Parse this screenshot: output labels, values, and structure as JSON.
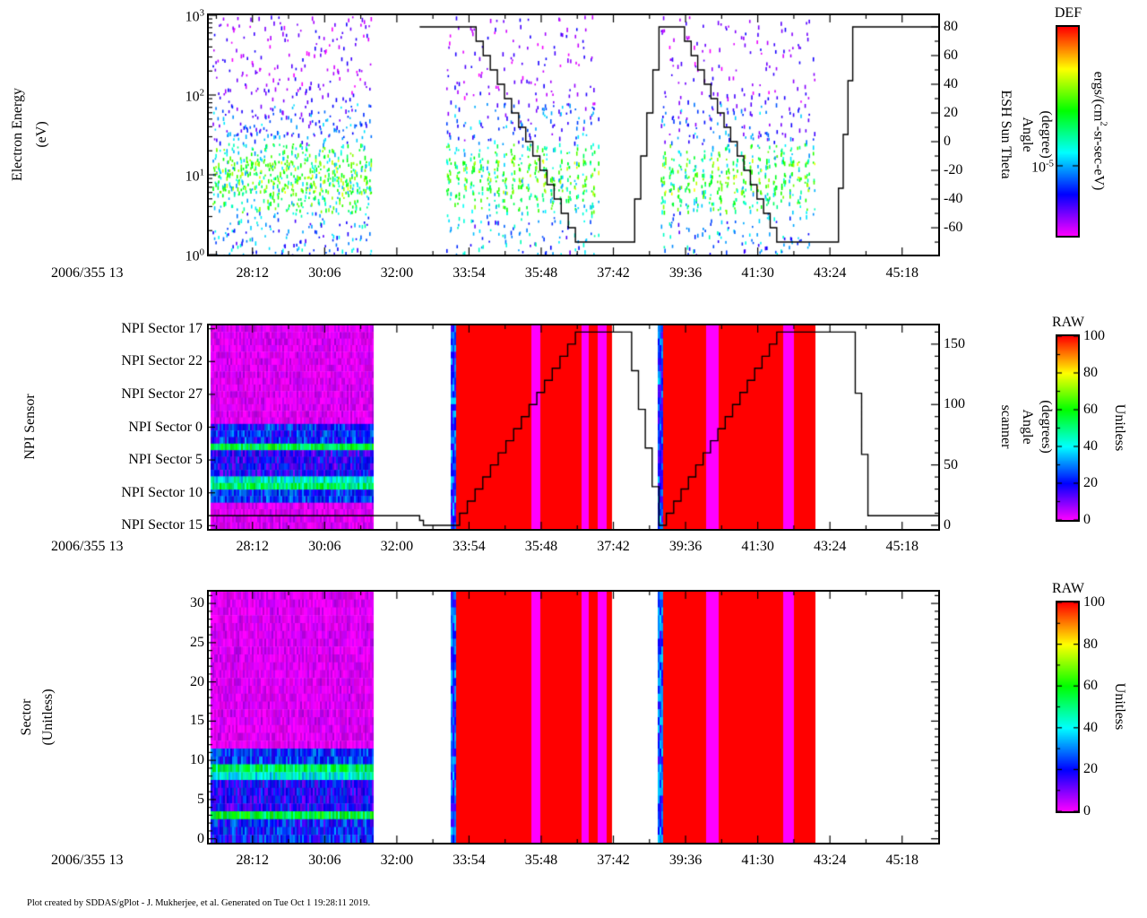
{
  "footer": "Plot created by SDDAS/gPlot - J. Mukherjee, et al.  Generated on Tue Oct 1 19:28:11 2019.",
  "time_axis": {
    "prefix_label": "2006/355 13",
    "tick_labels": [
      "28:12",
      "30:06",
      "32:00",
      "33:54",
      "35:48",
      "37:42",
      "39:36",
      "41:30",
      "43:24",
      "45:18"
    ],
    "tick_minutes": [
      28.2,
      30.1,
      32.0,
      33.9,
      35.8,
      37.7,
      39.6,
      41.5,
      43.4,
      45.3
    ],
    "range_minutes": [
      27.05,
      46.25
    ]
  },
  "colormap": {
    "stops": [
      "#ff00ff",
      "#0000ff",
      "#00ffff",
      "#00ff00",
      "#ffff00",
      "#ff0000"
    ],
    "description": "rainbow: low=magenta, high=red"
  },
  "chart_data": [
    {
      "type": "scatter-spectrogram",
      "id": "electron-energy",
      "ylabel_lines": [
        "Electron Energy",
        "(eV)"
      ],
      "yscale": "log",
      "yrange_ev": [
        1,
        1000
      ],
      "ytick_labels": [
        "10^0",
        "10^1",
        "10^2",
        "10^3"
      ],
      "right_axis": {
        "label_columns": [
          "ESH Sun Theta",
          "Angle",
          "(degree)"
        ],
        "range_deg": [
          -78.7,
          88.1
        ],
        "tick_values": [
          -60,
          -40,
          -20,
          0,
          20,
          40,
          60,
          80
        ],
        "minor_step": 10
      },
      "colorbar": {
        "title": "DEF",
        "unit_label": "ergs/(cm^2-sr-sec-eV)",
        "ticks": [
          {
            "label": "10^-5",
            "fraction_from_bottom": 0.335
          }
        ]
      },
      "scatter_regions": [
        {
          "t_minutes": [
            27.15,
            31.35
          ],
          "strip_period_min": 0.12,
          "strip_duty": 0.8
        },
        {
          "t_minutes": [
            33.3,
            37.3
          ],
          "strip_period_min": 0.21,
          "strip_duty": 0.55
        },
        {
          "t_minutes": [
            38.95,
            43.0
          ],
          "strip_period_min": 0.21,
          "strip_duty": 0.55
        }
      ],
      "energy_bands": [
        {
          "energy_ev": [
            1,
            3.5
          ],
          "points_per_column": 0.7,
          "value_range": [
            12,
            48
          ]
        },
        {
          "energy_ev": [
            3.5,
            25
          ],
          "points_per_column": 2.2,
          "value_range": [
            30,
            72
          ]
        },
        {
          "energy_ev": [
            6,
            16
          ],
          "points_per_column": 0.8,
          "value_range": [
            55,
            80
          ]
        },
        {
          "energy_ev": [
            25,
            80
          ],
          "points_per_column": 0.8,
          "value_range": [
            8,
            40
          ]
        },
        {
          "energy_ev": [
            80,
            1000
          ],
          "points_per_column": 0.9,
          "value_range": [
            0,
            20
          ]
        }
      ],
      "theta_line_segments": [
        {
          "kind": "flat",
          "t": [
            32.6,
            33.9
          ],
          "v": 80
        },
        {
          "kind": "stair",
          "t": [
            33.9,
            36.7
          ],
          "v": [
            80,
            -70
          ],
          "steps": 15
        },
        {
          "kind": "flat",
          "t": [
            36.7,
            38.1
          ],
          "v": -70
        },
        {
          "kind": "stair",
          "t": [
            38.1,
            38.9
          ],
          "v": [
            -70,
            80
          ],
          "steps": 5
        },
        {
          "kind": "flat",
          "t": [
            38.9,
            39.4
          ],
          "v": 80
        },
        {
          "kind": "stair",
          "t": [
            39.4,
            42.0
          ],
          "v": [
            80,
            -70
          ],
          "steps": 15
        },
        {
          "kind": "flat",
          "t": [
            42.0,
            43.5
          ],
          "v": -70
        },
        {
          "kind": "stair",
          "t": [
            43.5,
            44.0
          ],
          "v": [
            -70,
            80
          ],
          "steps": 4
        },
        {
          "kind": "flat",
          "t": [
            44.0,
            46.25
          ],
          "v": 80
        }
      ]
    },
    {
      "type": "heatmap",
      "id": "npi-sensor",
      "ylabel": "NPI Sensor",
      "rows": 31,
      "row_top_sector": 17,
      "row_order": "sector = (17 + row_from_top) mod 32",
      "row_labels": [
        {
          "label": "NPI Sector 17",
          "sector": 17
        },
        {
          "label": "NPI Sector 22",
          "sector": 22
        },
        {
          "label": "NPI Sector 27",
          "sector": 27
        },
        {
          "label": "NPI Sector 0",
          "sector": 0
        },
        {
          "label": "NPI Sector 5",
          "sector": 5
        },
        {
          "label": "NPI Sector 10",
          "sector": 10
        },
        {
          "label": "NPI Sector 15",
          "sector": 15
        }
      ],
      "right_axis": {
        "label_columns": [
          "scanner",
          "Angle",
          "(degrees)"
        ],
        "range_deg": [
          -3,
          165.5
        ],
        "tick_values": [
          0,
          50,
          100,
          150
        ],
        "minor_step": 10
      },
      "colorbar": {
        "title": "RAW",
        "unit_label": "Unitless",
        "tick_values": [
          0,
          20,
          40,
          60,
          80,
          100
        ]
      },
      "blocks": [
        {
          "kind": "banded-noise",
          "t_minutes": [
            27.1,
            31.35
          ]
        },
        {
          "kind": "saturated",
          "t_minutes": [
            33.43,
            37.62
          ],
          "value": 100,
          "stripes": [
            {
              "t_minutes": [
                33.43,
                33.55
              ],
              "kind": "blue-noise",
              "value_range": [
                12,
                38
              ]
            },
            {
              "t_minutes": [
                35.52,
                35.8
              ],
              "kind": "magenta",
              "value": 0
            },
            {
              "t_minutes": [
                36.85,
                37.05
              ],
              "kind": "magenta",
              "value": 0
            },
            {
              "t_minutes": [
                37.27,
                37.5
              ],
              "kind": "magenta",
              "value": 0
            }
          ]
        },
        {
          "kind": "saturated",
          "t_minutes": [
            38.89,
            43.0
          ],
          "value": 100,
          "stripes": [
            {
              "t_minutes": [
                38.89,
                39.0
              ],
              "kind": "blue-noise",
              "value_range": [
                12,
                38
              ]
            },
            {
              "t_minutes": [
                40.15,
                40.45
              ],
              "kind": "magenta",
              "value": 0
            },
            {
              "t_minutes": [
                42.15,
                42.45
              ],
              "kind": "magenta",
              "value": 0
            }
          ]
        }
      ],
      "sector_value_bands": [
        {
          "sectors": [
            0,
            2
          ],
          "value": 22,
          "noise": 10
        },
        {
          "sectors": [
            3,
            3
          ],
          "value": 55,
          "noise": 9
        },
        {
          "sectors": [
            4,
            7
          ],
          "value": 18,
          "noise": 9
        },
        {
          "sectors": [
            8,
            8
          ],
          "value": 42,
          "noise": 10
        },
        {
          "sectors": [
            9,
            9
          ],
          "value": 52,
          "noise": 9
        },
        {
          "sectors": [
            10,
            11
          ],
          "value": 24,
          "noise": 9
        },
        {
          "sectors": [
            12,
            31
          ],
          "value": 2,
          "noise": 3
        }
      ],
      "scanner_line_segments": [
        {
          "kind": "flat",
          "t": [
            27.05,
            32.5
          ],
          "v": 8
        },
        {
          "kind": "stair",
          "t": [
            32.5,
            32.7
          ],
          "v": [
            8,
            0
          ],
          "steps": 2
        },
        {
          "kind": "flat",
          "t": [
            32.7,
            33.45
          ],
          "v": 0
        },
        {
          "kind": "stair",
          "t": [
            33.45,
            36.7
          ],
          "v": [
            0,
            160
          ],
          "steps": 16
        },
        {
          "kind": "flat",
          "t": [
            36.7,
            38.0
          ],
          "v": 160
        },
        {
          "kind": "stair",
          "t": [
            38.0,
            38.9
          ],
          "v": [
            160,
            0
          ],
          "steps": 5
        },
        {
          "kind": "stair",
          "t": [
            38.9,
            42.0
          ],
          "v": [
            0,
            160
          ],
          "steps": 16
        },
        {
          "kind": "flat",
          "t": [
            42.0,
            43.9
          ],
          "v": 160
        },
        {
          "kind": "stair",
          "t": [
            43.9,
            44.4
          ],
          "v": [
            160,
            8
          ],
          "steps": 3
        },
        {
          "kind": "flat",
          "t": [
            44.4,
            46.25
          ],
          "v": 8
        }
      ]
    },
    {
      "type": "heatmap",
      "id": "sector",
      "ylabel_lines": [
        "Sector",
        "(Unitless)"
      ],
      "rows": 32,
      "row_top_sector": 31,
      "row_order": "sector = 31 - row_from_top (sector 0 at bottom)",
      "ytick_values": [
        0,
        5,
        10,
        15,
        20,
        25,
        30
      ],
      "colorbar": {
        "title": "RAW",
        "unit_label": "Unitless",
        "tick_values": [
          0,
          20,
          40,
          60,
          80,
          100
        ]
      },
      "blocks": [
        {
          "kind": "banded-noise",
          "t_minutes": [
            27.1,
            31.35
          ]
        },
        {
          "kind": "saturated",
          "t_minutes": [
            33.43,
            37.62
          ],
          "value": 100,
          "stripes": [
            {
              "t_minutes": [
                33.43,
                33.55
              ],
              "kind": "blue-noise",
              "value_range": [
                12,
                38
              ]
            },
            {
              "t_minutes": [
                35.52,
                35.8
              ],
              "kind": "magenta",
              "value": 0
            },
            {
              "t_minutes": [
                36.85,
                37.05
              ],
              "kind": "magenta",
              "value": 0
            },
            {
              "t_minutes": [
                37.27,
                37.5
              ],
              "kind": "magenta",
              "value": 0
            }
          ]
        },
        {
          "kind": "saturated",
          "t_minutes": [
            38.89,
            43.0
          ],
          "value": 100,
          "stripes": [
            {
              "t_minutes": [
                38.89,
                39.0
              ],
              "kind": "blue-noise",
              "value_range": [
                12,
                38
              ]
            },
            {
              "t_minutes": [
                40.15,
                40.45
              ],
              "kind": "magenta",
              "value": 0
            },
            {
              "t_minutes": [
                42.15,
                42.45
              ],
              "kind": "magenta",
              "value": 0
            }
          ]
        }
      ],
      "sector_value_bands": [
        {
          "sectors": [
            0,
            2
          ],
          "value": 22,
          "noise": 10
        },
        {
          "sectors": [
            3,
            3
          ],
          "value": 55,
          "noise": 9
        },
        {
          "sectors": [
            4,
            7
          ],
          "value": 18,
          "noise": 9
        },
        {
          "sectors": [
            8,
            8
          ],
          "value": 42,
          "noise": 10
        },
        {
          "sectors": [
            9,
            9
          ],
          "value": 52,
          "noise": 9
        },
        {
          "sectors": [
            10,
            11
          ],
          "value": 24,
          "noise": 9
        },
        {
          "sectors": [
            12,
            31
          ],
          "value": 2,
          "noise": 3
        }
      ]
    }
  ]
}
